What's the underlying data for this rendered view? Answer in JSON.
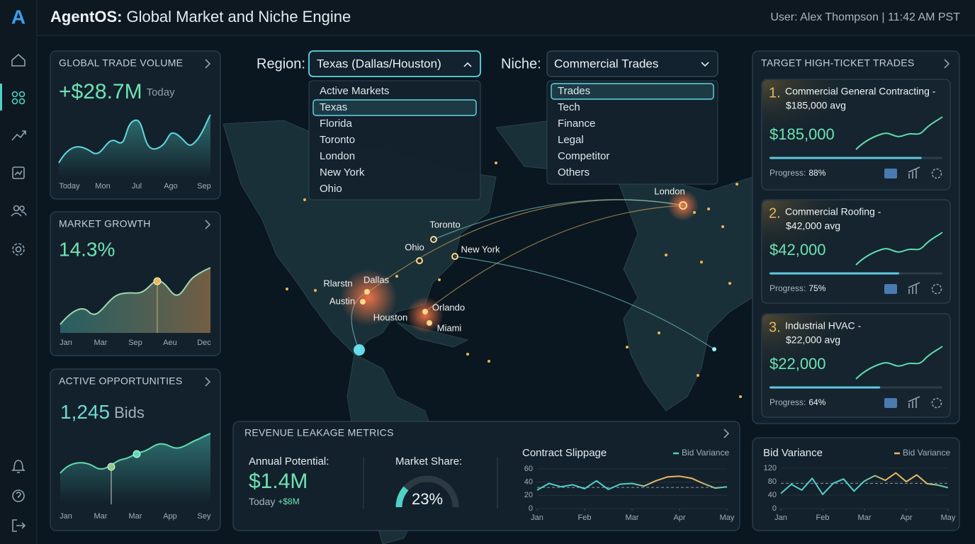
{
  "header": {
    "logo": "A",
    "brand": "AgentOS:",
    "title": "Global Market and Niche Engine",
    "user": "User: Alex Thompson | 11:42 AM PST"
  },
  "cards": [
    {
      "title": "GLOBAL TRADE VOLUME",
      "value": "+$28.7M",
      "suffix": "Today",
      "x_labels": [
        "Today",
        "Mon",
        "Jul",
        "Ago",
        "Sep"
      ]
    },
    {
      "title": "MARKET GROWTH",
      "value": "14.3%",
      "x_labels": [
        "Jan",
        "Mar",
        "Sep",
        "Aeu",
        "Dec"
      ]
    },
    {
      "title": "ACTIVE OPPORTUNITIES",
      "value": "1,245",
      "suffix": "Bids",
      "x_labels": [
        "Jan",
        "Mar",
        "Mar",
        "App",
        "Sey"
      ]
    }
  ],
  "region": {
    "label": "Region:",
    "selected": "Texas (Dallas/Houston)",
    "options": [
      "Active Markets",
      "Texas",
      "Florida",
      "Toronto",
      "London",
      "New York",
      "Ohio"
    ]
  },
  "niche": {
    "label": "Niche:",
    "selected": "Commercial Trades",
    "options": [
      "Trades",
      "Tech",
      "Finance",
      "Legal",
      "Competitor",
      "Others"
    ]
  },
  "map_labels": [
    "London",
    "Toronto",
    "Ohio",
    "New York",
    "Rlarstn",
    "Dallas",
    "Austin",
    "Houston",
    "Orlando",
    "Miami"
  ],
  "trades": {
    "title": "TARGET HIGH-TICKET TRADES",
    "items": [
      {
        "rank": "1.",
        "name_lines": [
          "Commercial General Contracting -",
          "$185,000 avg"
        ],
        "value": "$185,000",
        "progress_text": "Progress:",
        "progress": {
          "value": 88,
          "label": "88%"
        }
      },
      {
        "rank": "2.",
        "name_lines": [
          "Commercial Roofing -",
          "$42,000 avg"
        ],
        "value": "$42,000",
        "progress_text": "Progress:",
        "progress": {
          "value": 75,
          "label": "75%"
        }
      },
      {
        "rank": "3.",
        "name_lines": [
          "Industrial HVAC -",
          "$22,000 avg"
        ],
        "value": "$22,000",
        "progress_text": "Progress:",
        "progress": {
          "value": 64,
          "label": "64%"
        }
      }
    ]
  },
  "revenue": {
    "title": "REVENUE LEAKAGE METRICS",
    "annual_label": "Annual Potential:",
    "annual_value": "$1.4M",
    "today_label": "Today",
    "today_value": "+$8M",
    "share_label": "Market Share:",
    "share": {
      "value": 23,
      "label": "23%"
    },
    "slippage": {
      "type": "line",
      "title": "Contract Slippage",
      "legend": "Bid Variance",
      "color": "#4fd1c5",
      "color2": "#e8b860",
      "x": [
        0,
        0.25,
        0.5,
        0.75,
        1,
        1.25,
        1.5,
        1.75,
        2,
        2.25,
        2.5,
        2.75,
        3,
        3.25,
        3.5,
        3.75,
        4
      ],
      "values": [
        28,
        38,
        33,
        36,
        30,
        42,
        29,
        37,
        38,
        34,
        42,
        48,
        49,
        46,
        38,
        31,
        33
      ],
      "reference_line": 32,
      "xlim": [
        0,
        4
      ],
      "xticks": [
        {
          "value": 0,
          "label": "Jan"
        },
        {
          "value": 1,
          "label": "Feb"
        },
        {
          "value": 2,
          "label": "Mar"
        },
        {
          "value": 3,
          "label": "Apr"
        },
        {
          "value": 4,
          "label": "May"
        }
      ],
      "ylim": [
        0,
        60
      ],
      "yticks": [
        0,
        20,
        40,
        60
      ]
    }
  },
  "bid_variance": {
    "type": "line",
    "title": "Bid Variance",
    "legend": "Bid Variance",
    "color": "#4fd1c5",
    "color2": "#e8b860",
    "x": [
      0,
      0.25,
      0.5,
      0.75,
      1,
      1.25,
      1.5,
      1.75,
      2,
      2.25,
      2.5,
      2.75,
      3,
      3.25,
      3.5,
      3.75,
      4
    ],
    "values": [
      45,
      72,
      55,
      90,
      42,
      75,
      88,
      52,
      82,
      98,
      84,
      106,
      80,
      100,
      74,
      70,
      62
    ],
    "reference_line": 75,
    "xlim": [
      0,
      4
    ],
    "xticks": [
      {
        "value": 0,
        "label": "Jan"
      },
      {
        "value": 1,
        "label": "Feb"
      },
      {
        "value": 2,
        "label": "Mar"
      },
      {
        "value": 3,
        "label": "Apr"
      },
      {
        "value": 4,
        "label": "May"
      }
    ],
    "ylim": [
      0,
      120
    ],
    "yticks": [
      0,
      40,
      80,
      120
    ]
  }
}
